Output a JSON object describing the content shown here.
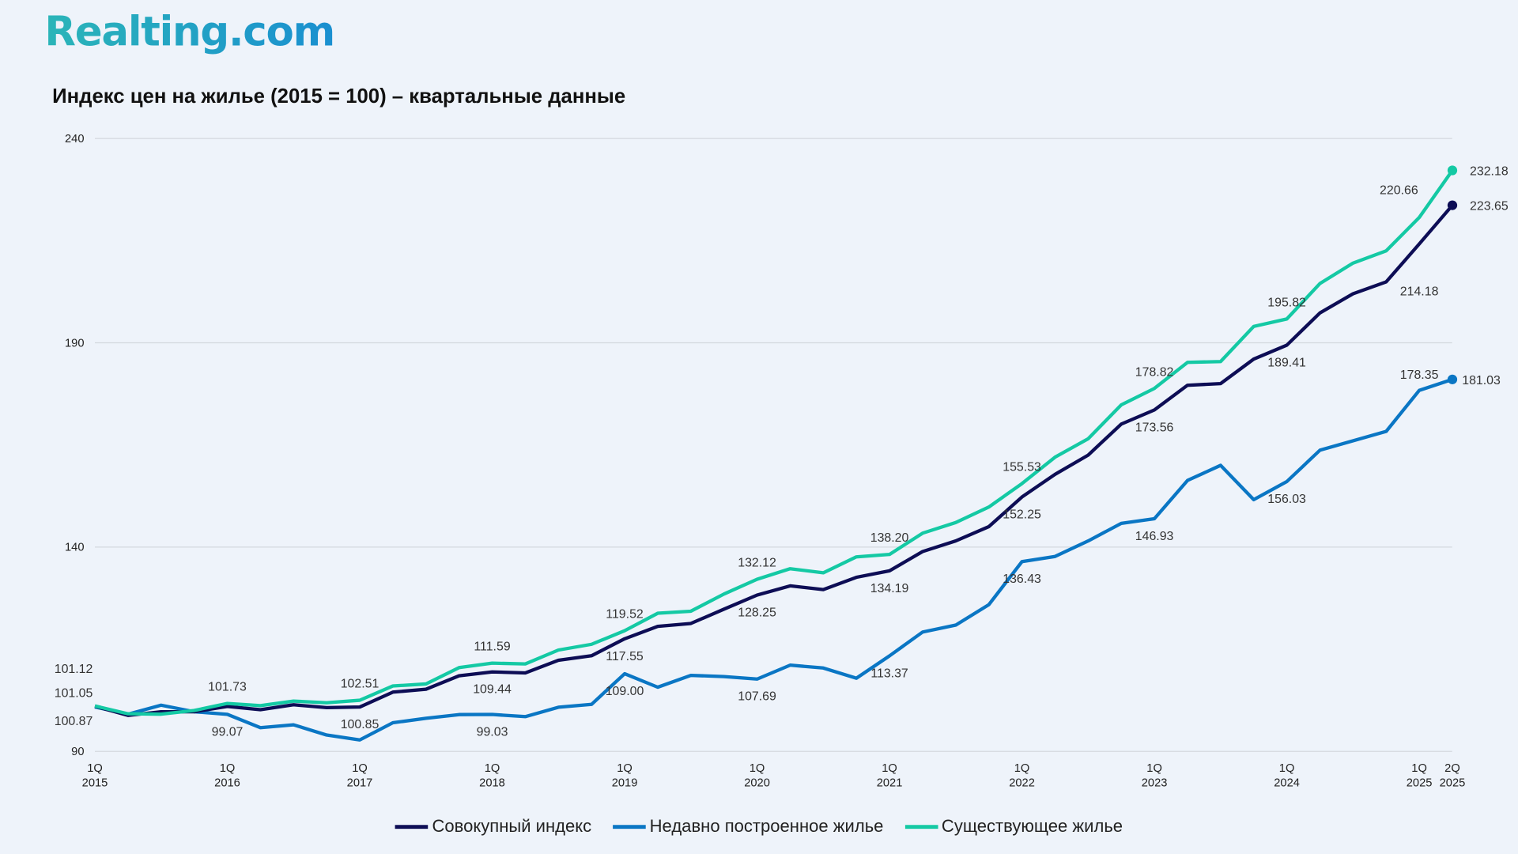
{
  "logo": "Realting.com",
  "chart_data": {
    "type": "line",
    "title": "Индекс цен на жилье (2015 = 100) – квартальные данные",
    "ylim": [
      90,
      240
    ],
    "yticks": [
      90,
      140,
      190,
      240
    ],
    "grid": true,
    "legend_position": "bottom",
    "x": [
      "1Q 2015",
      "2Q 2015",
      "3Q 2015",
      "4Q 2015",
      "1Q 2016",
      "2Q 2016",
      "3Q 2016",
      "4Q 2016",
      "1Q 2017",
      "2Q 2017",
      "3Q 2017",
      "4Q 2017",
      "1Q 2018",
      "2Q 2018",
      "3Q 2018",
      "4Q 2018",
      "1Q 2019",
      "2Q 2019",
      "3Q 2019",
      "4Q 2019",
      "1Q 2020",
      "2Q 2020",
      "3Q 2020",
      "4Q 2020",
      "1Q 2021",
      "2Q 2021",
      "3Q 2021",
      "4Q 2021",
      "1Q 2022",
      "2Q 2022",
      "3Q 2022",
      "4Q 2022",
      "1Q 2023",
      "2Q 2023",
      "3Q 2023",
      "4Q 2023",
      "1Q 2024",
      "2Q 2024",
      "3Q 2024",
      "4Q 2024",
      "1Q 2025",
      "2Q 2025"
    ],
    "xticks": [
      {
        "index": 0,
        "q": "1Q",
        "year": "2015"
      },
      {
        "index": 4,
        "q": "1Q",
        "year": "2016"
      },
      {
        "index": 8,
        "q": "1Q",
        "year": "2017"
      },
      {
        "index": 12,
        "q": "1Q",
        "year": "2018"
      },
      {
        "index": 16,
        "q": "1Q",
        "year": "2019"
      },
      {
        "index": 20,
        "q": "1Q",
        "year": "2020"
      },
      {
        "index": 24,
        "q": "1Q",
        "year": "2021"
      },
      {
        "index": 28,
        "q": "1Q",
        "year": "2022"
      },
      {
        "index": 32,
        "q": "1Q",
        "year": "2023"
      },
      {
        "index": 36,
        "q": "1Q",
        "year": "2024"
      },
      {
        "index": 40,
        "q": "1Q",
        "year": "2025"
      },
      {
        "index": 41,
        "q": "2Q",
        "year": "2025"
      }
    ],
    "series": [
      {
        "name": "Совокупный индекс",
        "color": "#0d0d55",
        "values": [
          101.05,
          98.8,
          99.7,
          99.7,
          101.0,
          100.2,
          101.4,
          100.7,
          100.85,
          104.5,
          105.2,
          108.5,
          109.44,
          109.2,
          112.3,
          113.4,
          117.55,
          120.6,
          121.3,
          124.8,
          128.25,
          130.5,
          129.6,
          132.6,
          134.19,
          138.9,
          141.5,
          145.0,
          152.25,
          157.8,
          162.5,
          170.1,
          173.56,
          179.6,
          180.0,
          186.0,
          189.41,
          197.3,
          202.0,
          204.9,
          214.18,
          223.65
        ],
        "labeled_points": [
          0,
          8,
          12,
          16,
          20,
          24,
          28,
          32,
          36,
          40,
          41
        ]
      },
      {
        "name": "Недавно построенное жилье",
        "color": "#0a76c4",
        "values": [
          100.87,
          99.1,
          101.3,
          99.7,
          99.07,
          95.8,
          96.5,
          94.0,
          92.8,
          97.0,
          98.1,
          99.0,
          99.03,
          98.5,
          100.8,
          101.5,
          109.0,
          105.7,
          108.6,
          108.3,
          107.69,
          111.1,
          110.4,
          107.9,
          113.37,
          119.2,
          120.9,
          125.9,
          136.43,
          137.7,
          141.5,
          145.8,
          146.93,
          156.3,
          160.0,
          151.6,
          156.03,
          163.7,
          166.0,
          168.3,
          178.35,
          181.03
        ],
        "labeled_points": [
          0,
          4,
          12,
          16,
          20,
          24,
          28,
          32,
          36,
          40,
          41
        ]
      },
      {
        "name": "Существующее жилье",
        "color": "#14c9a4",
        "values": [
          101.12,
          99.2,
          99.1,
          100.0,
          101.73,
          101.2,
          102.3,
          101.9,
          102.51,
          106.0,
          106.5,
          110.5,
          111.59,
          111.4,
          114.8,
          116.2,
          119.52,
          123.8,
          124.3,
          128.5,
          132.12,
          134.7,
          133.7,
          137.6,
          138.2,
          143.4,
          146.0,
          149.8,
          155.53,
          162.0,
          166.5,
          174.8,
          178.82,
          185.2,
          185.4,
          194.0,
          195.82,
          204.5,
          209.5,
          212.5,
          220.66,
          232.18
        ],
        "labeled_points": [
          0,
          4,
          8,
          12,
          16,
          20,
          24,
          28,
          32,
          36,
          40,
          41
        ]
      }
    ]
  }
}
